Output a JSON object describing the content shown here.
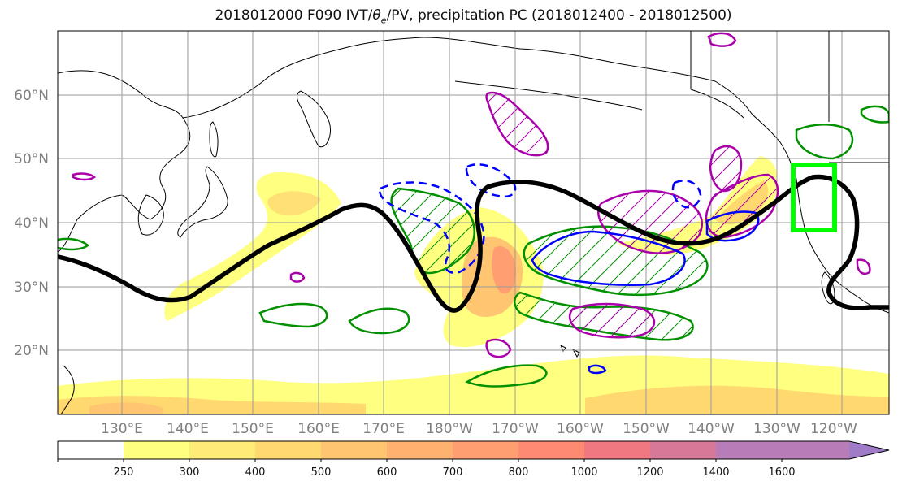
{
  "figure": {
    "title_main": "2018012000 F090 IVT/",
    "title_theta": "θ",
    "title_sub": "e",
    "title_tail": "/PV, precipitation PC (2018012400 - 2018012500)"
  },
  "map": {
    "lat_labels": [
      "60°N",
      "50°N",
      "40°N",
      "30°N",
      "20°N"
    ],
    "lon_labels": [
      "130°E",
      "140°E",
      "150°E",
      "160°E",
      "170°E",
      "180°W",
      "170°W",
      "160°W",
      "150°W",
      "140°W",
      "130°W",
      "120°W"
    ],
    "ivt_levels": [
      250,
      300,
      400,
      500,
      600,
      700,
      800,
      1000,
      1200,
      1400,
      1600
    ],
    "ivt_colors": [
      "#ffffff",
      "#ffff80",
      "#ffec78",
      "#ffd870",
      "#ffc570",
      "#ffb270",
      "#ff9e70",
      "#ff8a72",
      "#f07880",
      "#d87898",
      "#b87cb8",
      "#a07cc8"
    ],
    "contour_colors": {
      "theta_e_2pvu": "#000000",
      "box": "#00ff00",
      "pc_positive": "#009000",
      "pc_negative": "#aa00aa",
      "pv_blue": "#0000ff"
    }
  },
  "colorbar": {
    "tick_labels": [
      "250",
      "300",
      "400",
      "500",
      "600",
      "700",
      "800",
      "1000",
      "1200",
      "1400",
      "1600"
    ]
  }
}
